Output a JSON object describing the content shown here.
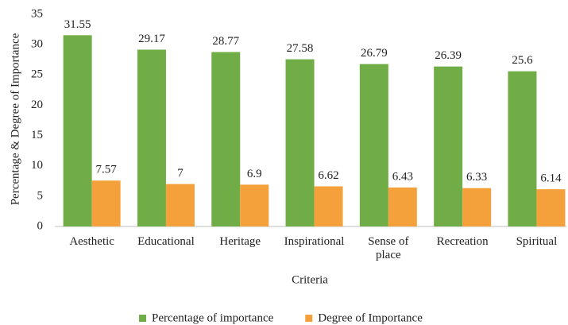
{
  "chart_data": {
    "type": "bar",
    "x_label": "Criteria",
    "y_label": "Percentage & Degree of Importance",
    "categories": [
      "Aesthetic",
      "Educational",
      "Heritage",
      "Inspirational",
      "Sense of place",
      "Recreation",
      "Spiritual"
    ],
    "series": [
      {
        "name": "Percentage of importance",
        "color": "#70ad47",
        "values": [
          31.55,
          29.17,
          28.77,
          27.58,
          26.79,
          26.39,
          25.6
        ]
      },
      {
        "name": "Degree of Importance",
        "color": "#f4a13c",
        "values": [
          7.57,
          7,
          6.9,
          6.62,
          6.43,
          6.33,
          6.14
        ]
      }
    ],
    "ylim": [
      0,
      35
    ],
    "yticks": [
      0,
      5,
      10,
      15,
      20,
      25,
      30,
      35
    ],
    "grid": false,
    "legend": "bottom"
  }
}
